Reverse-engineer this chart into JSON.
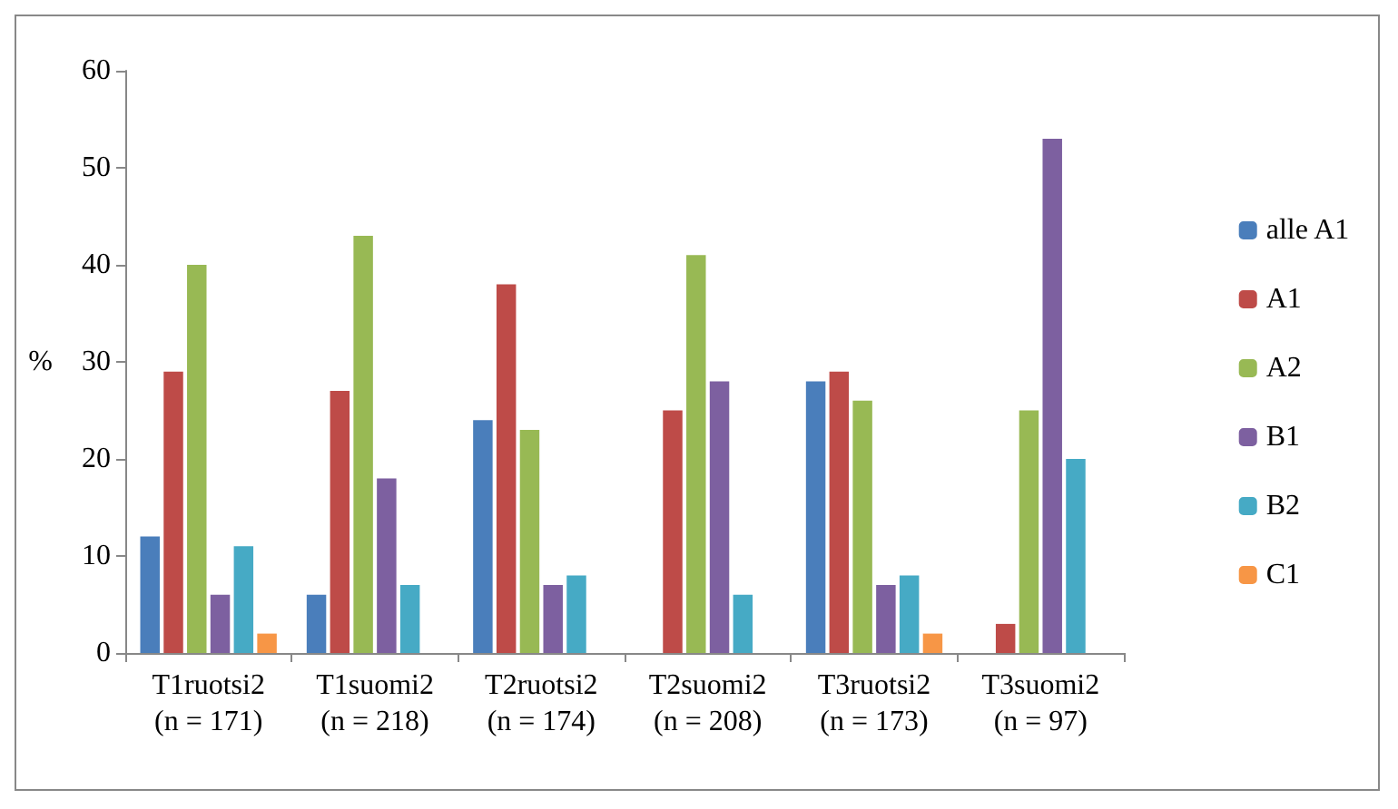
{
  "chart_data": {
    "type": "bar",
    "ylabel": "%",
    "categories": [
      "T1ruotsi2\n(n = 171)",
      "T1suomi2\n(n = 218)",
      "T2ruotsi2\n(n = 174)",
      "T2suomi2\n(n = 208)",
      "T3ruotsi2\n(n = 173)",
      "T3suomi2\n(n = 97)"
    ],
    "series": [
      {
        "name": "alle A1",
        "color": "#4a7ebb",
        "values": [
          12,
          6,
          24,
          0,
          28,
          0
        ]
      },
      {
        "name": "A1",
        "color": "#be4b48",
        "values": [
          29,
          27,
          38,
          25,
          29,
          3
        ]
      },
      {
        "name": "A2",
        "color": "#98b954",
        "values": [
          40,
          43,
          23,
          41,
          26,
          25
        ]
      },
      {
        "name": "B1",
        "color": "#7d60a0",
        "values": [
          6,
          18,
          7,
          28,
          7,
          53
        ]
      },
      {
        "name": "B2",
        "color": "#46aac5",
        "values": [
          11,
          7,
          8,
          6,
          8,
          20
        ]
      },
      {
        "name": "C1",
        "color": "#f79646",
        "values": [
          2,
          0,
          0,
          0,
          2,
          0
        ]
      }
    ],
    "ylim": [
      0,
      60
    ],
    "yticks": [
      0,
      10,
      20,
      30,
      40,
      50,
      60
    ],
    "grid": false,
    "legend": "right"
  }
}
